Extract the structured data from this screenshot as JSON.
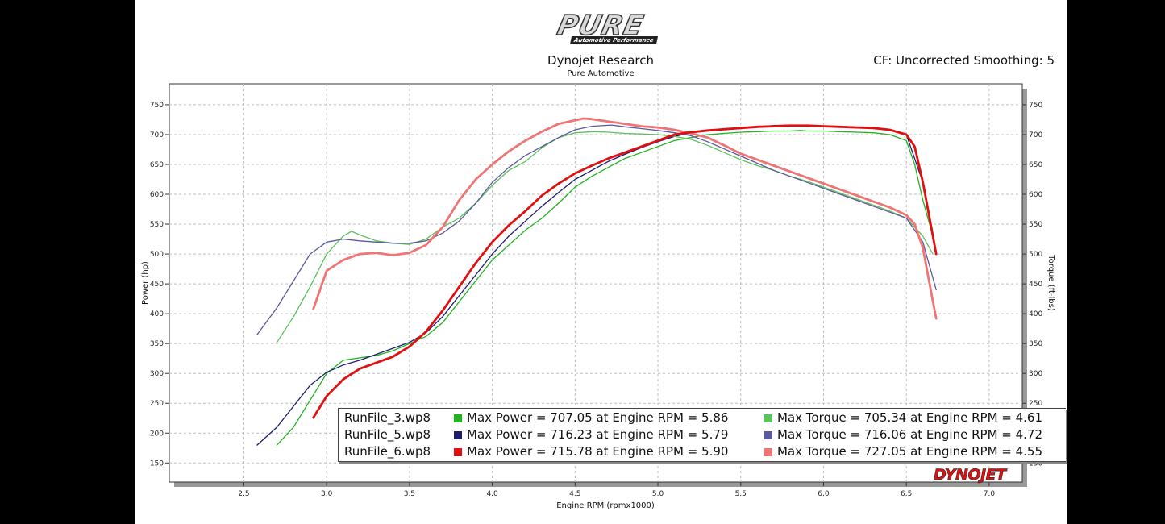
{
  "header": {
    "logo_text": "PURE",
    "logo_subtext": "Automotive Performance",
    "title": "Dynojet Research",
    "subtitle": "Pure Automotive",
    "cf_text": "CF: Uncorrected Smoothing: 5"
  },
  "brand_logo_text": "DYNOJET",
  "colors": {
    "run3_power": "#1fb51f",
    "run3_torque": "#5cc25c",
    "run5_power": "#1c1c6e",
    "run5_torque": "#5a5a9e",
    "run6_power": "#e01010",
    "run6_torque": "#f07474"
  },
  "legend": [
    {
      "file": "RunFile_3.wp8",
      "power_text": "Max Power = 707.05 at Engine RPM = 5.86",
      "torque_text": "Max Torque = 705.34 at Engine RPM = 4.61",
      "power_color": "#1fb51f",
      "torque_color": "#5cc25c"
    },
    {
      "file": "RunFile_5.wp8",
      "power_text": "Max Power = 716.23 at Engine RPM = 5.79",
      "torque_text": "Max Torque = 716.06 at Engine RPM = 4.72",
      "power_color": "#1c1c6e",
      "torque_color": "#5a5a9e"
    },
    {
      "file": "RunFile_6.wp8",
      "power_text": "Max Power = 715.78 at Engine RPM = 5.90",
      "torque_text": "Max Torque = 727.05 at Engine RPM = 4.55",
      "power_color": "#e01010",
      "torque_color": "#f07474"
    }
  ],
  "chart_data": {
    "type": "line",
    "xlabel": "Engine RPM (rpmx1000)",
    "ylabel": "Power (hp)",
    "y2label": "Torque (ft-lbs)",
    "xlim": [
      2.05,
      7.2
    ],
    "ylim": [
      118,
      785
    ],
    "xticks": [
      "2.5",
      "3.0",
      "3.5",
      "4.0",
      "4.5",
      "5.0",
      "5.5",
      "6.0",
      "6.5",
      "7.0"
    ],
    "yticks": [
      "150",
      "200",
      "250",
      "300",
      "350",
      "400",
      "450",
      "500",
      "550",
      "600",
      "650",
      "700",
      "750"
    ],
    "grid": true,
    "series": [
      {
        "name": "RunFile_3.wp8 Power",
        "color": "#1fb51f",
        "width": 1.3,
        "x": [
          2.7,
          2.8,
          2.9,
          3.0,
          3.1,
          3.2,
          3.3,
          3.4,
          3.5,
          3.6,
          3.7,
          3.8,
          3.9,
          4.0,
          4.1,
          4.2,
          4.3,
          4.4,
          4.5,
          4.6,
          4.7,
          4.8,
          4.9,
          5.0,
          5.1,
          5.2,
          5.3,
          5.4,
          5.5,
          5.6,
          5.7,
          5.8,
          5.86,
          5.9,
          6.0,
          6.1,
          6.2,
          6.3,
          6.4,
          6.5,
          6.55,
          6.6,
          6.66
        ],
        "y": [
          180,
          210,
          255,
          300,
          322,
          326,
          330,
          338,
          350,
          362,
          385,
          420,
          455,
          490,
          515,
          540,
          560,
          585,
          612,
          630,
          645,
          660,
          670,
          680,
          690,
          695,
          700,
          702,
          704,
          705,
          706,
          706,
          707,
          706,
          706,
          705,
          704,
          703,
          700,
          690,
          650,
          590,
          530
        ]
      },
      {
        "name": "RunFile_3.wp8 Torque",
        "color": "#5cc25c",
        "width": 1.3,
        "x": [
          2.7,
          2.8,
          2.9,
          3.0,
          3.1,
          3.15,
          3.2,
          3.3,
          3.4,
          3.5,
          3.6,
          3.7,
          3.8,
          3.9,
          4.0,
          4.1,
          4.2,
          4.3,
          4.4,
          4.5,
          4.61,
          4.7,
          4.8,
          4.9,
          5.0,
          5.1,
          5.2,
          5.3,
          5.4,
          5.5,
          5.6,
          5.7,
          5.8,
          5.9,
          6.0,
          6.1,
          6.2,
          6.3,
          6.4,
          6.5,
          6.6,
          6.66
        ],
        "y": [
          352,
          395,
          445,
          500,
          530,
          538,
          532,
          522,
          518,
          516,
          525,
          545,
          560,
          585,
          615,
          640,
          655,
          678,
          695,
          703,
          705,
          704,
          702,
          701,
          700,
          697,
          692,
          682,
          670,
          658,
          648,
          640,
          630,
          622,
          612,
          602,
          592,
          582,
          572,
          560,
          530,
          500
        ]
      },
      {
        "name": "RunFile_5.wp8 Power",
        "color": "#1c1c6e",
        "width": 1.3,
        "x": [
          2.58,
          2.7,
          2.8,
          2.9,
          3.0,
          3.1,
          3.2,
          3.3,
          3.4,
          3.5,
          3.6,
          3.7,
          3.8,
          3.9,
          4.0,
          4.1,
          4.2,
          4.3,
          4.4,
          4.5,
          4.6,
          4.7,
          4.8,
          4.9,
          5.0,
          5.1,
          5.2,
          5.3,
          5.4,
          5.5,
          5.6,
          5.7,
          5.79,
          5.9,
          6.0,
          6.1,
          6.2,
          6.3,
          6.4,
          6.5,
          6.6,
          6.68
        ],
        "y": [
          180,
          210,
          245,
          280,
          302,
          314,
          322,
          332,
          342,
          352,
          368,
          395,
          430,
          465,
          500,
          530,
          555,
          580,
          603,
          625,
          640,
          655,
          667,
          678,
          688,
          697,
          703,
          706,
          709,
          711,
          713,
          715,
          716,
          715,
          714,
          713,
          712,
          711,
          708,
          700,
          620,
          500
        ]
      },
      {
        "name": "RunFile_5.wp8 Torque",
        "color": "#5a5a9e",
        "width": 1.3,
        "x": [
          2.58,
          2.7,
          2.8,
          2.9,
          3.0,
          3.1,
          3.2,
          3.3,
          3.4,
          3.5,
          3.6,
          3.7,
          3.8,
          3.9,
          4.0,
          4.1,
          4.2,
          4.3,
          4.4,
          4.5,
          4.6,
          4.72,
          4.8,
          4.9,
          5.0,
          5.1,
          5.2,
          5.3,
          5.4,
          5.5,
          5.6,
          5.7,
          5.8,
          5.9,
          6.0,
          6.1,
          6.2,
          6.3,
          6.4,
          6.5,
          6.6,
          6.68
        ],
        "y": [
          365,
          410,
          455,
          500,
          520,
          525,
          522,
          520,
          518,
          518,
          522,
          535,
          555,
          585,
          620,
          645,
          665,
          680,
          695,
          708,
          714,
          716,
          713,
          710,
          707,
          703,
          698,
          688,
          676,
          664,
          652,
          640,
          630,
          620,
          610,
          600,
          590,
          580,
          570,
          560,
          520,
          440
        ]
      },
      {
        "name": "RunFile_6.wp8 Power",
        "color": "#e01010",
        "width": 2.8,
        "x": [
          2.92,
          3.0,
          3.1,
          3.2,
          3.3,
          3.4,
          3.5,
          3.6,
          3.7,
          3.8,
          3.9,
          4.0,
          4.1,
          4.2,
          4.3,
          4.4,
          4.5,
          4.6,
          4.7,
          4.8,
          4.9,
          5.0,
          5.1,
          5.2,
          5.3,
          5.4,
          5.5,
          5.6,
          5.7,
          5.8,
          5.9,
          6.0,
          6.1,
          6.2,
          6.3,
          6.4,
          6.5,
          6.55,
          6.6,
          6.64,
          6.68
        ],
        "y": [
          226,
          262,
          290,
          308,
          318,
          328,
          345,
          370,
          405,
          445,
          485,
          520,
          548,
          572,
          598,
          618,
          635,
          648,
          660,
          670,
          680,
          690,
          700,
          704,
          707,
          709,
          711,
          713,
          714,
          715,
          715,
          714,
          713,
          712,
          711,
          708,
          700,
          680,
          620,
          560,
          500
        ]
      },
      {
        "name": "RunFile_6.wp8 Torque",
        "color": "#f07474",
        "width": 2.8,
        "x": [
          2.92,
          3.0,
          3.1,
          3.2,
          3.3,
          3.4,
          3.5,
          3.6,
          3.7,
          3.8,
          3.9,
          4.0,
          4.1,
          4.2,
          4.3,
          4.4,
          4.55,
          4.6,
          4.7,
          4.8,
          4.9,
          5.0,
          5.1,
          5.2,
          5.3,
          5.4,
          5.5,
          5.6,
          5.7,
          5.8,
          5.9,
          6.0,
          6.1,
          6.2,
          6.3,
          6.4,
          6.5,
          6.55,
          6.6,
          6.64,
          6.68
        ],
        "y": [
          408,
          472,
          490,
          500,
          502,
          498,
          502,
          515,
          545,
          590,
          625,
          650,
          672,
          690,
          705,
          718,
          727,
          726,
          722,
          718,
          714,
          712,
          708,
          702,
          695,
          682,
          668,
          658,
          648,
          638,
          628,
          618,
          608,
          598,
          588,
          578,
          565,
          550,
          510,
          450,
          392
        ]
      }
    ]
  }
}
